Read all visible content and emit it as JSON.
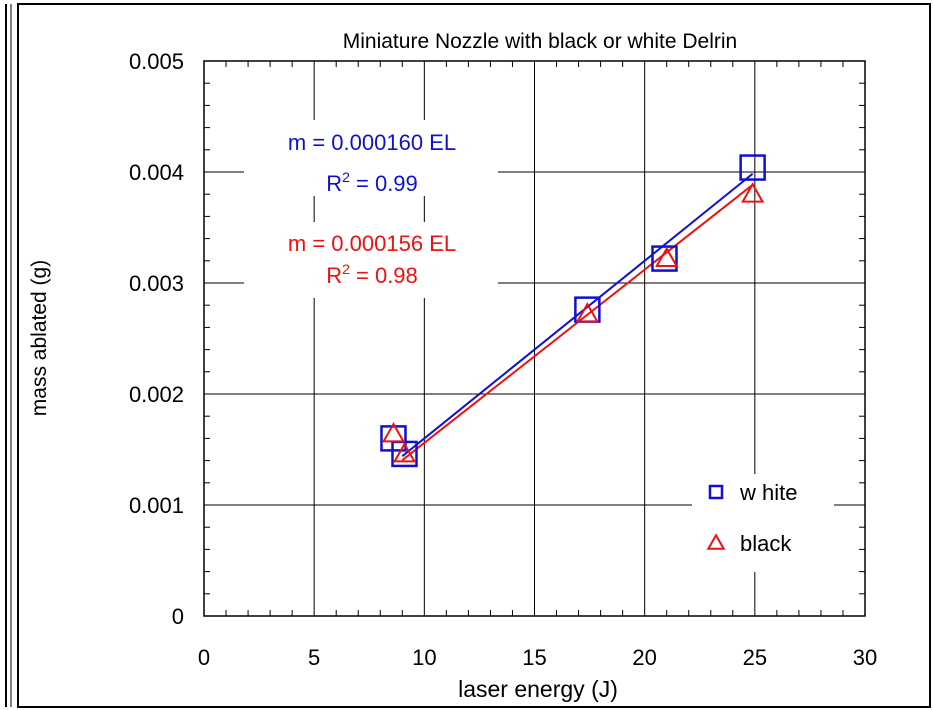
{
  "chart_data": {
    "type": "scatter",
    "title": "Miniature Nozzle with black or  white Delrin",
    "xlabel": "laser energy (J)",
    "ylabel": "mass ablated (g)",
    "xlim": [
      0,
      30
    ],
    "ylim": [
      0,
      0.005
    ],
    "x_ticks": [
      0,
      5,
      10,
      15,
      20,
      25,
      30
    ],
    "x_tick_labels": [
      "0",
      "5",
      "10",
      "15",
      "20",
      "25",
      "30"
    ],
    "y_ticks": [
      0,
      0.001,
      0.002,
      0.003,
      0.004,
      0.005
    ],
    "y_tick_labels": [
      "0",
      "0.001",
      "0.002",
      "0.003",
      "0.004",
      "0.005"
    ],
    "grid": true,
    "legend_position": "bottom-right",
    "series": [
      {
        "name": "w hite",
        "marker": "square",
        "color": "#1010D0",
        "points": [
          {
            "x": 8.6,
            "y": 0.0016
          },
          {
            "x": 9.1,
            "y": 0.00146
          },
          {
            "x": 17.4,
            "y": 0.00276
          },
          {
            "x": 20.9,
            "y": 0.00322
          },
          {
            "x": 24.9,
            "y": 0.00404
          }
        ],
        "fit": {
          "slope": 0.00016,
          "x_range": [
            9.0,
            24.9
          ]
        }
      },
      {
        "name": "black",
        "marker": "triangle",
        "color": "#EE1111",
        "points": [
          {
            "x": 8.6,
            "y": 0.00164
          },
          {
            "x": 9.1,
            "y": 0.00146
          },
          {
            "x": 17.4,
            "y": 0.00272
          },
          {
            "x": 21.0,
            "y": 0.00322
          },
          {
            "x": 24.9,
            "y": 0.0038
          }
        ],
        "fit": {
          "slope": 0.000156,
          "x_range": [
            9.0,
            24.9
          ]
        }
      }
    ],
    "annotations": [
      {
        "series": "w hite",
        "line1": "m = 0.000160 EL",
        "r2_prefix": "R",
        "r2_sup": "2",
        "r2_suffix": " = 0.99"
      },
      {
        "series": "black",
        "line1": "m = 0.000156 EL",
        "r2_prefix": "R",
        "r2_sup": "2",
        "r2_suffix": " = 0.98"
      }
    ]
  }
}
